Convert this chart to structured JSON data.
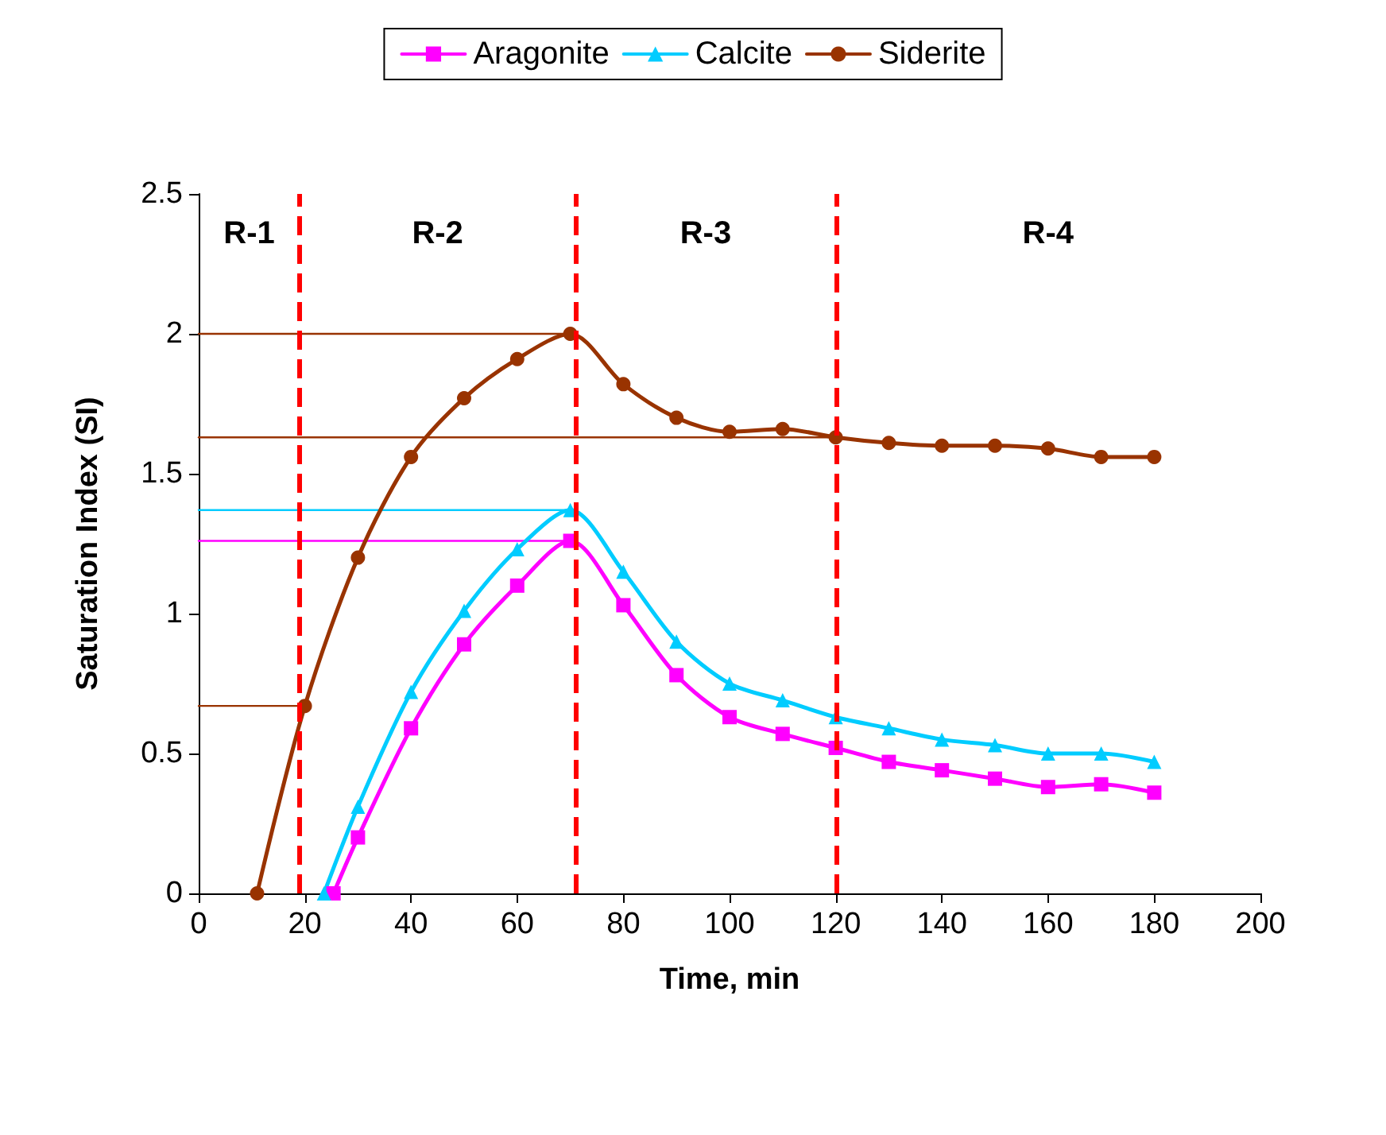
{
  "chart_data": {
    "type": "line",
    "xlabel": "Time, min",
    "ylabel": "Saturation Index (SI)",
    "xlim": [
      0,
      200
    ],
    "xticks": [
      0,
      20,
      40,
      60,
      80,
      100,
      120,
      140,
      160,
      180,
      200
    ],
    "ylim": [
      0,
      2.5
    ],
    "yticks": [
      0,
      0.5,
      1,
      1.5,
      2,
      2.5
    ],
    "grid": false,
    "legend": "top",
    "line_style": "solid",
    "series": [
      {
        "name": "Aragonite",
        "color": "#ff00ff",
        "marker": "square",
        "x": [
          25.4,
          30,
          40,
          50,
          60,
          70,
          80,
          90,
          100,
          110,
          120,
          130,
          140,
          150,
          160,
          170,
          180
        ],
        "values": [
          0,
          0.2,
          0.59,
          0.89,
          1.1,
          1.26,
          1.03,
          0.78,
          0.63,
          0.57,
          0.52,
          0.47,
          0.44,
          0.41,
          0.38,
          0.39,
          0.36
        ]
      },
      {
        "name": "Calcite",
        "color": "#00ccff",
        "marker": "triangle",
        "x": [
          23.6,
          30,
          40,
          50,
          60,
          70,
          80,
          90,
          100,
          110,
          120,
          130,
          140,
          150,
          160,
          170,
          180
        ],
        "values": [
          0,
          0.31,
          0.72,
          1.01,
          1.23,
          1.37,
          1.15,
          0.9,
          0.75,
          0.69,
          0.63,
          0.59,
          0.55,
          0.53,
          0.5,
          0.5,
          0.47
        ]
      },
      {
        "name": "Siderite",
        "color": "#993300",
        "marker": "circle",
        "x": [
          11,
          20,
          30,
          40,
          50,
          60,
          70,
          80,
          90,
          100,
          110,
          120,
          130,
          140,
          150,
          160,
          170,
          180
        ],
        "values": [
          0,
          0.67,
          1.2,
          1.56,
          1.77,
          1.91,
          2,
          1.82,
          1.7,
          1.65,
          1.66,
          1.63,
          1.61,
          1.6,
          1.6,
          1.59,
          1.56,
          1.56
        ]
      },
      {
        "color": "#993300",
        "marker": "none",
        "x": [
          0,
          70
        ],
        "values": [
          2,
          2
        ]
      },
      {
        "color": "#993300",
        "marker": "none",
        "x": [
          0,
          120
        ],
        "values": [
          1.63,
          1.63
        ]
      },
      {
        "color": "#993300",
        "marker": "none",
        "x": [
          0,
          20
        ],
        "values": [
          0.67,
          0.67
        ]
      },
      {
        "color": "#00ccff",
        "marker": "none",
        "x": [
          0,
          70
        ],
        "values": [
          1.37,
          1.37
        ]
      },
      {
        "color": "#ff00ff",
        "marker": "none",
        "x": [
          0,
          70
        ],
        "values": [
          1.26,
          1.26
        ]
      }
    ],
    "ref_lines": [
      {
        "axis": "x",
        "value": 19,
        "color": "#ff0000",
        "line_style": "dashed"
      },
      {
        "axis": "x",
        "value": 71,
        "color": "#ff0000",
        "line_style": "dashed"
      },
      {
        "axis": "x",
        "value": 120,
        "color": "#ff0000",
        "line_style": "dashed"
      }
    ],
    "annotations": [
      "R-1",
      "R-2",
      "R-3",
      "R-4"
    ]
  }
}
